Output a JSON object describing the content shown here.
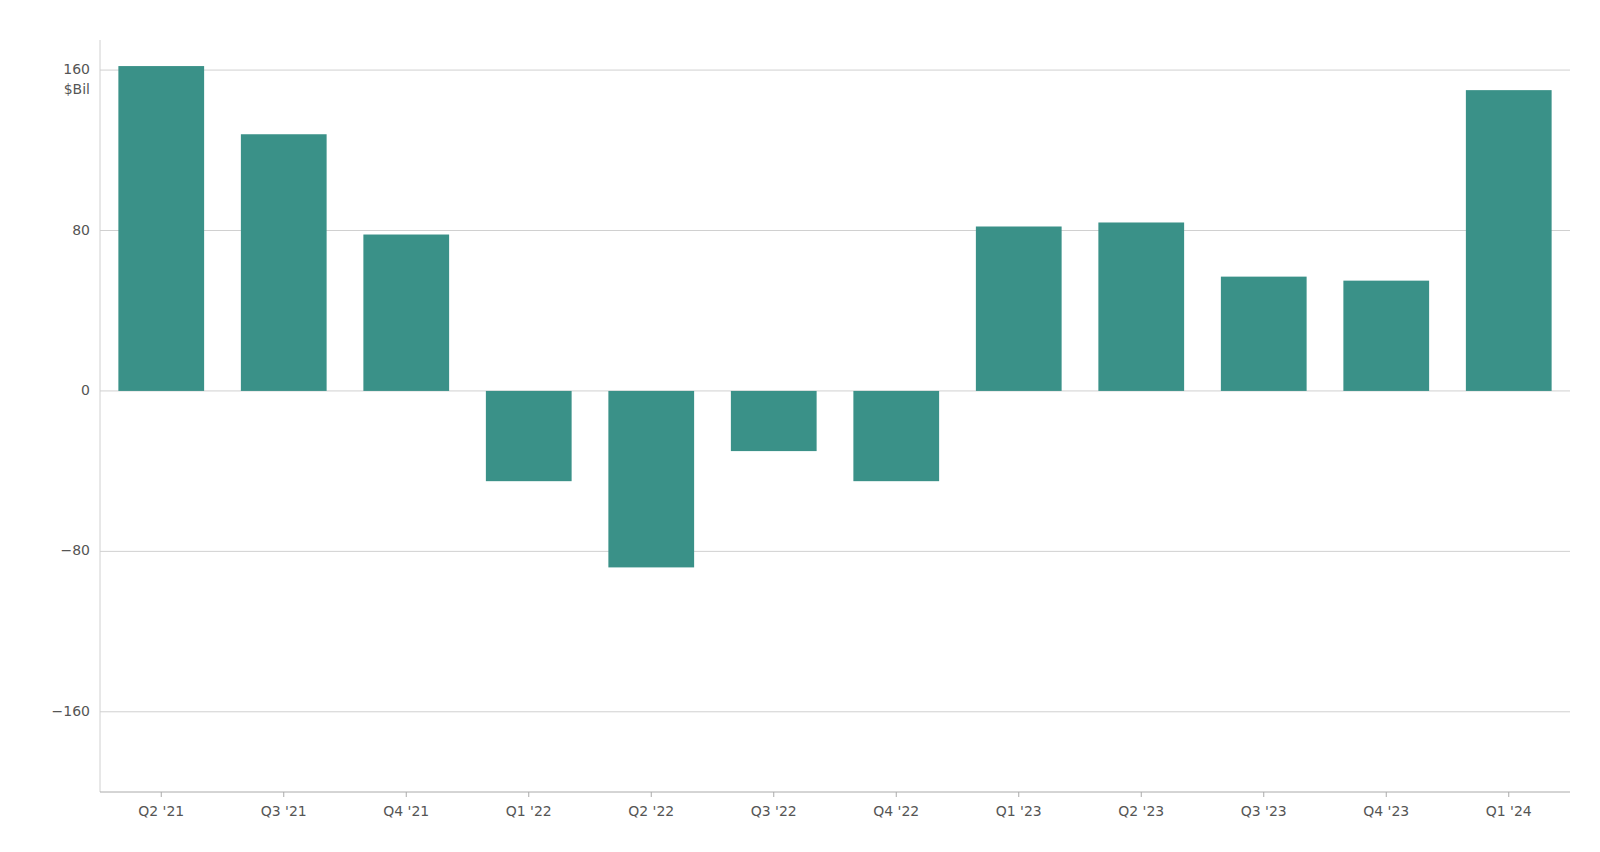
{
  "chart_data": {
    "type": "bar",
    "ylabel": "$Bil",
    "categories": [
      "Q2 '21",
      "Q3 '21",
      "Q4 '21",
      "Q1 '22",
      "Q2 '22",
      "Q3 '22",
      "Q4 '22",
      "Q1 '23",
      "Q2 '23",
      "Q3 '23",
      "Q4 '23",
      "Q1 '24"
    ],
    "values": [
      162,
      128,
      78,
      -45,
      -88,
      -30,
      -45,
      82,
      84,
      57,
      55,
      150
    ],
    "color": "#3a9188",
    "ylim": [
      -200,
      175
    ],
    "yticks": [
      160,
      80,
      0,
      {
        "value": -80,
        "label": "−80"
      },
      {
        "value": -160,
        "label": "−160"
      }
    ],
    "grid": true
  }
}
